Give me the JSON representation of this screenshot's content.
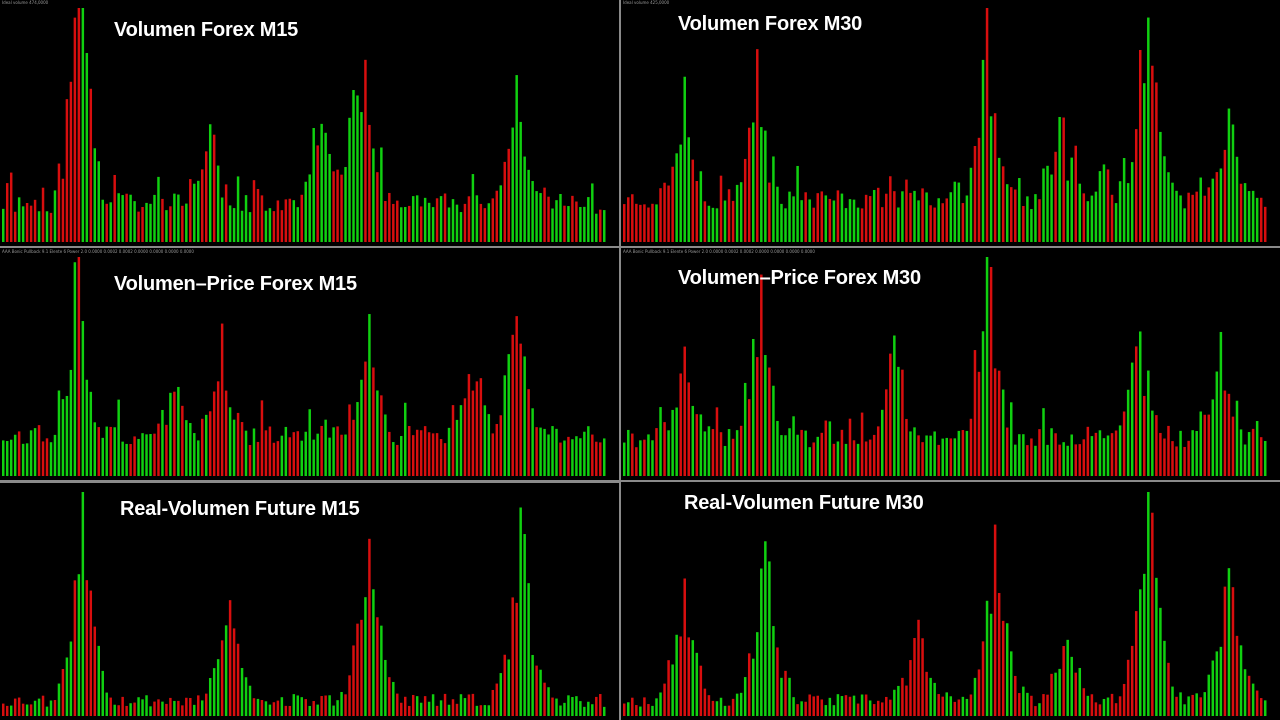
{
  "screen": {
    "background": "#000000",
    "divider_color": "#8a8a8a",
    "bar_colors": {
      "up": "#10d010",
      "down": "#d80e0e"
    }
  },
  "panels": [
    {
      "id": "volumen-forex-m15",
      "title": "Volumen Forex M15",
      "header": "Ideal volume 474,0000",
      "chart_data": {
        "type": "bar",
        "title": "Volumen Forex M15",
        "series_colors": [
          "#10d010",
          "#d80e0e"
        ],
        "ylim": [
          0,
          100
        ],
        "profile": "forex",
        "bar_count": 152,
        "peaks": [
          [
            19,
            100
          ],
          [
            20,
            62
          ],
          [
            80,
            47
          ],
          [
            88,
            52
          ],
          [
            91,
            49
          ],
          [
            129,
            48
          ],
          [
            52,
            37
          ]
        ],
        "seed": 11,
        "base": 12
      }
    },
    {
      "id": "volumen-forex-m30",
      "title": "Volumen Forex M30",
      "header": "Ideal volume 425,0000",
      "chart_data": {
        "type": "bar",
        "title": "Volumen Forex M30",
        "series_colors": [
          "#10d010",
          "#d80e0e"
        ],
        "ylim": [
          0,
          100
        ],
        "profile": "forex",
        "bar_count": 160,
        "peaks": [
          [
            15,
            58
          ],
          [
            33,
            63
          ],
          [
            90,
            100
          ],
          [
            108,
            49
          ],
          [
            128,
            60
          ],
          [
            131,
            68
          ],
          [
            150,
            48
          ]
        ],
        "seed": 23,
        "base": 14
      }
    },
    {
      "id": "volumen-price-forex-m15",
      "title": "Volumen–Price Forex M15",
      "header": "AAA Bonic Pullback 9.1 Elente 6 Power 2.0 0.0000 0.0002 0.0002 0.0000 0.0000 0.0000 0.0000",
      "chart_data": {
        "type": "bar",
        "title": "Volumen–Price Forex M15",
        "series_colors": [
          "#10d010",
          "#d80e0e"
        ],
        "ylim": [
          0,
          100
        ],
        "profile": "forex",
        "bar_count": 152,
        "peaks": [
          [
            19,
            100
          ],
          [
            55,
            60
          ],
          [
            92,
            61
          ],
          [
            129,
            73
          ],
          [
            118,
            37
          ],
          [
            43,
            30
          ]
        ],
        "seed": 37,
        "base": 14
      }
    },
    {
      "id": "volumen-price-forex-m30",
      "title": "Volumen–Price Forex M30",
      "header": "AAA Bonic Pullback 9.1 Elente 6 Power 2.0 0.0000 0.0002 0.0002 0.0000 0.0000 0.0000 0.0000",
      "chart_data": {
        "type": "bar",
        "title": "Volumen–Price Forex M30",
        "series_colors": [
          "#10d010",
          "#d80e0e"
        ],
        "ylim": [
          0,
          100
        ],
        "profile": "forex",
        "bar_count": 160,
        "peaks": [
          [
            34,
            81
          ],
          [
            67,
            62
          ],
          [
            90,
            100
          ],
          [
            128,
            66
          ],
          [
            148,
            56
          ],
          [
            15,
            50
          ]
        ],
        "seed": 41,
        "base": 13
      }
    },
    {
      "id": "real-volumen-future-m15",
      "title": "Real-Volumen Future M15",
      "header": "",
      "chart_data": {
        "type": "bar",
        "title": "Real-Volumen Future M15",
        "series_colors": [
          "#10d010",
          "#d80e0e"
        ],
        "ylim": [
          0,
          100
        ],
        "profile": "future",
        "bar_count": 152,
        "peaks": [
          [
            20,
            100
          ],
          [
            57,
            47
          ],
          [
            92,
            77
          ],
          [
            130,
            83
          ]
        ],
        "seed": 53,
        "base": 4
      }
    },
    {
      "id": "real-volumen-future-m30",
      "title": "Real-Volumen Future M30",
      "header": "",
      "chart_data": {
        "type": "bar",
        "title": "Real-Volumen Future M30",
        "series_colors": [
          "#10d010",
          "#d80e0e"
        ],
        "ylim": [
          0,
          100
        ],
        "profile": "future",
        "bar_count": 160,
        "peaks": [
          [
            15,
            53
          ],
          [
            35,
            78
          ],
          [
            92,
            83
          ],
          [
            130,
            100
          ],
          [
            150,
            66
          ],
          [
            110,
            34
          ],
          [
            73,
            34
          ]
        ],
        "seed": 67,
        "base": 4
      }
    }
  ]
}
